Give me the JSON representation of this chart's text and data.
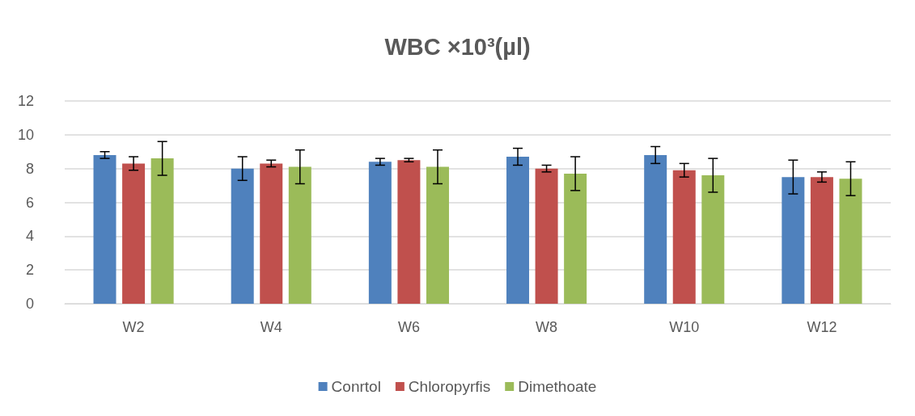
{
  "chart_data": {
    "type": "bar",
    "title": "WBC ×10³(µl)",
    "categories": [
      "W2",
      "W4",
      "W6",
      "W8",
      "W10",
      "W12"
    ],
    "series": [
      {
        "name": "Conrtol",
        "color": "#4f81bd",
        "values": [
          8.8,
          8.0,
          8.4,
          8.7,
          8.8,
          7.5
        ],
        "errors": [
          0.2,
          0.7,
          0.2,
          0.5,
          0.5,
          1.0
        ]
      },
      {
        "name": "Chloropyrfis",
        "color": "#c0504d",
        "values": [
          8.3,
          8.3,
          8.5,
          8.0,
          7.9,
          7.5
        ],
        "errors": [
          0.4,
          0.2,
          0.1,
          0.2,
          0.4,
          0.3
        ]
      },
      {
        "name": "Dimethoate",
        "color": "#9bbb59",
        "values": [
          8.6,
          8.1,
          8.1,
          7.7,
          7.6,
          7.4
        ],
        "errors": [
          1.0,
          1.0,
          1.0,
          1.0,
          1.0,
          1.0
        ]
      }
    ],
    "ylim": [
      0,
      12
    ],
    "yticks": [
      0,
      2,
      4,
      6,
      8,
      10,
      12
    ],
    "grid": "y",
    "legend": "bottom"
  }
}
